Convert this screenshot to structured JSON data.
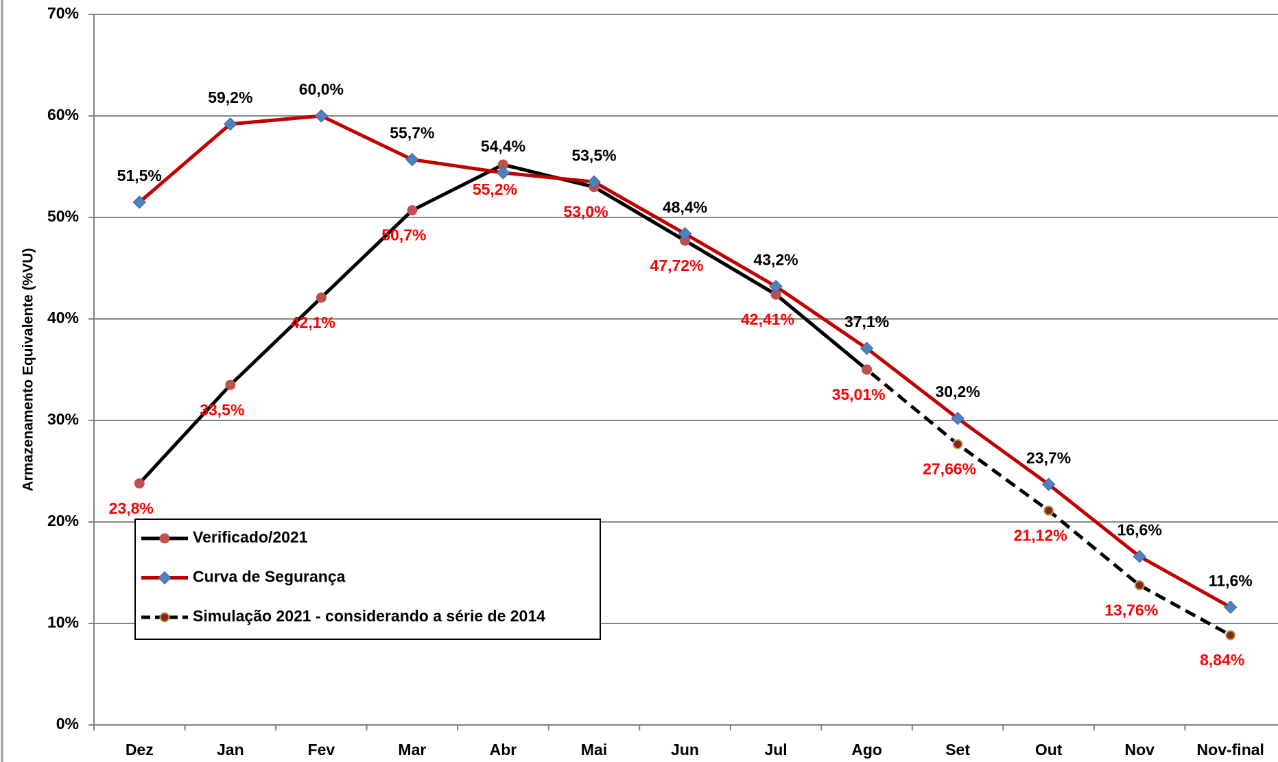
{
  "chart_data": {
    "type": "line",
    "y_label": "Armazenamento Equivalente (%VU)",
    "categories": [
      "Dez",
      "Jan",
      "Fev",
      "Mar",
      "Abr",
      "Mai",
      "Jun",
      "Jul",
      "Ago",
      "Set",
      "Out",
      "Nov",
      "Nov-final"
    ],
    "ylim": [
      0,
      70
    ],
    "yticks": [
      {
        "value": 0,
        "label": "0%"
      },
      {
        "value": 10,
        "label": "10%"
      },
      {
        "value": 20,
        "label": "20%"
      },
      {
        "value": 30,
        "label": "30%"
      },
      {
        "value": 40,
        "label": "40%"
      },
      {
        "value": 50,
        "label": "50%"
      },
      {
        "value": 60,
        "label": "60%"
      },
      {
        "value": 70,
        "label": "70%"
      }
    ],
    "grid": true,
    "legend": "lower left",
    "series": [
      {
        "name": "Verificado/2021",
        "color": "#000000",
        "marker": "circle",
        "marker_color": "#c0504d",
        "dashed": false,
        "values": [
          23.8,
          33.5,
          42.1,
          50.7,
          55.2,
          53.0,
          47.72,
          42.41,
          35.01,
          null,
          null,
          null,
          null
        ],
        "value_labels": [
          "23,8%",
          "33,5%",
          "42,1%",
          "50,7%",
          null,
          null,
          null,
          null,
          null,
          null,
          null,
          null,
          null
        ]
      },
      {
        "name": "Curva de Segurança",
        "color": "#c00000",
        "marker": "diamond",
        "marker_color": "#4f81bd",
        "dashed": false,
        "values": [
          51.5,
          59.2,
          60.0,
          55.7,
          54.4,
          53.5,
          48.4,
          43.2,
          37.1,
          30.2,
          23.7,
          16.6,
          11.6
        ],
        "value_labels": [
          "51,5%",
          "59,2%",
          "60,0%",
          "55,7%",
          "54,4%",
          "53,5%",
          "48,4%",
          "43,2%",
          "37,1%",
          "30,2%",
          "23,7%",
          "16,6%",
          "11,6%"
        ]
      },
      {
        "name": "Simulação 2021 - considerando a série de 2014",
        "color": "#000000",
        "marker": "circle",
        "marker_color": "#9b1b1b",
        "dashed": true,
        "values": [
          null,
          null,
          null,
          null,
          55.2,
          53.0,
          47.72,
          42.41,
          35.01,
          27.66,
          21.12,
          13.76,
          8.84
        ],
        "value_labels": [
          null,
          null,
          null,
          null,
          "55,2%",
          "53,0%",
          "47,72%",
          "42,41%",
          "35,01%",
          "27,66%",
          "21,12%",
          "13,76%",
          "8,84%"
        ]
      }
    ]
  }
}
